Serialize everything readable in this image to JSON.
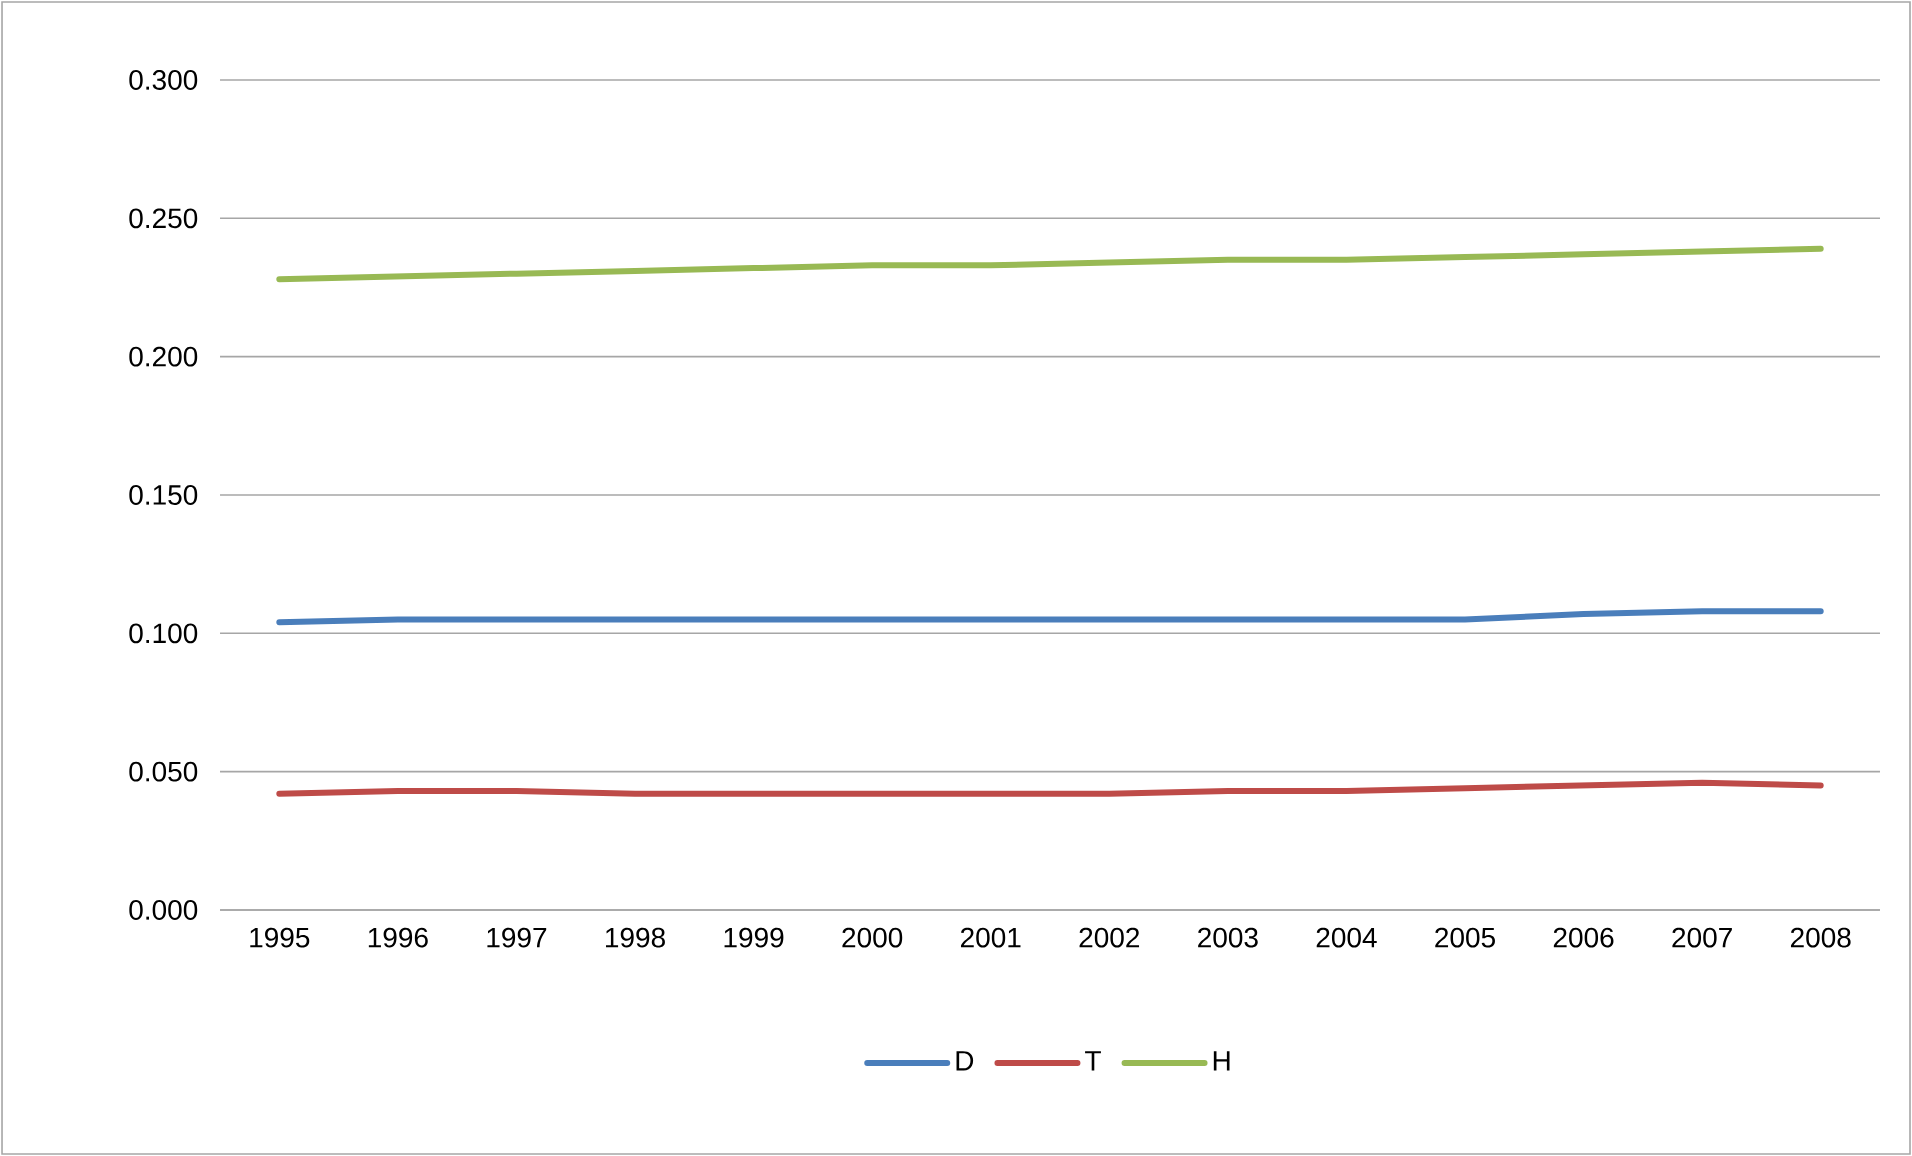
{
  "chart_data": {
    "type": "line",
    "categories": [
      "1995",
      "1996",
      "1997",
      "1998",
      "1999",
      "2000",
      "2001",
      "2002",
      "2003",
      "2004",
      "2005",
      "2006",
      "2007",
      "2008"
    ],
    "series": [
      {
        "name": "D",
        "color": "#4a7ebb",
        "values": [
          0.104,
          0.105,
          0.105,
          0.105,
          0.105,
          0.105,
          0.105,
          0.105,
          0.105,
          0.105,
          0.105,
          0.107,
          0.108,
          0.108
        ]
      },
      {
        "name": "T",
        "color": "#be4b48",
        "values": [
          0.042,
          0.043,
          0.043,
          0.042,
          0.042,
          0.042,
          0.042,
          0.042,
          0.043,
          0.043,
          0.044,
          0.045,
          0.046,
          0.045
        ]
      },
      {
        "name": "H",
        "color": "#98b954",
        "values": [
          0.228,
          0.229,
          0.23,
          0.231,
          0.232,
          0.233,
          0.233,
          0.234,
          0.235,
          0.235,
          0.236,
          0.237,
          0.238,
          0.239
        ]
      }
    ],
    "ylim": [
      0,
      0.3
    ],
    "yticks": [
      {
        "value": 0,
        "label": "0.000"
      },
      {
        "value": 0.05,
        "label": "0.050"
      },
      {
        "value": 0.1,
        "label": "0.100"
      },
      {
        "value": 0.15,
        "label": "0.150"
      },
      {
        "value": 0.2,
        "label": "0.200"
      },
      {
        "value": 0.25,
        "label": "0.250"
      },
      {
        "value": 0.3,
        "label": "0.300"
      }
    ],
    "grid": "y",
    "legend": "bottom",
    "marker": "none",
    "line_style": "solid"
  }
}
